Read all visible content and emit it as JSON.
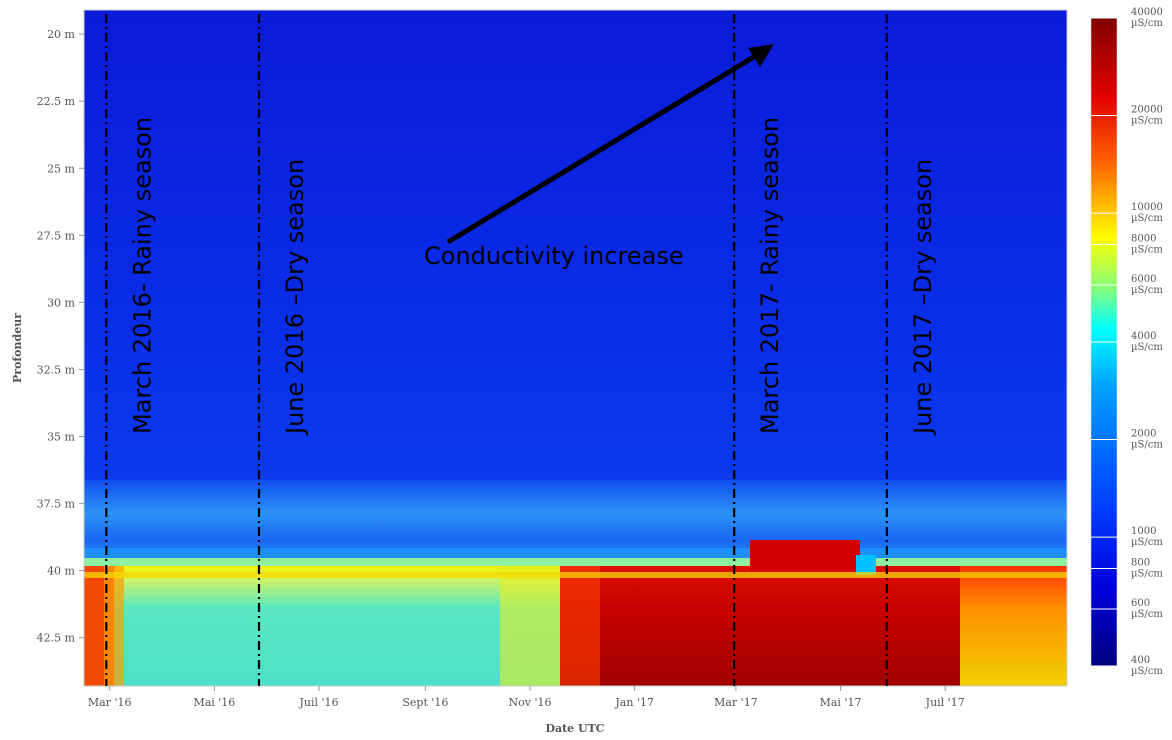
{
  "chart_data": {
    "type": "heatmap",
    "xlabel": "Date UTC",
    "ylabel": "Profondeur",
    "x_ticks": [
      "Mar '16",
      "Mai '16",
      "Juil '16",
      "Sept '16",
      "Nov '16",
      "Jan '17",
      "Mar '17",
      "Mai '17",
      "Juil '17"
    ],
    "y_ticks": [
      "20 m",
      "22.5 m",
      "25 m",
      "27.5 m",
      "30 m",
      "32.5 m",
      "35 m",
      "37.5 m",
      "40 m",
      "42.5 m"
    ],
    "y_values_m": [
      20,
      22.5,
      25,
      27.5,
      30,
      32.5,
      35,
      37.5,
      40,
      42.5
    ],
    "ylim_m": [
      19.1,
      44.3
    ],
    "x_range": [
      "2016-02-15",
      "2017-09-10"
    ],
    "colorbar": {
      "unit": "µS/cm",
      "scale": "log",
      "ticks": [
        40000,
        20000,
        10000,
        8000,
        6000,
        4000,
        2000,
        1000,
        800,
        600,
        400
      ],
      "colors": [
        "#000080",
        "#0000ff",
        "#0080ff",
        "#00ffff",
        "#80ff80",
        "#ffff00",
        "#ff8000",
        "#ff0000",
        "#800000"
      ]
    },
    "regions": [
      {
        "depth_m": [
          19.1,
          38.0
        ],
        "period": [
          "2016-02-15",
          "2017-09-10"
        ],
        "approx_conductivity_uS_cm": 1200
      },
      {
        "depth_m": [
          37.0,
          39.3
        ],
        "period": [
          "2016-02-15",
          "2016-11-01"
        ],
        "approx_conductivity_uS_cm": 2500
      },
      {
        "depth_m": [
          39.8,
          44.3
        ],
        "period": [
          "2016-03-01",
          "2016-11-15"
        ],
        "approx_conductivity_uS_cm": 6000
      },
      {
        "depth_m": [
          39.5,
          44.3
        ],
        "period": [
          "2016-12-10",
          "2017-07-01"
        ],
        "approx_conductivity_uS_cm": 35000
      },
      {
        "depth_m": [
          39.8,
          44.3
        ],
        "period": [
          "2017-07-01",
          "2017-09-10"
        ],
        "approx_conductivity_uS_cm": 12000
      }
    ],
    "vertical_lines": [
      {
        "date": "2016-02-28",
        "label": "March 2016- Rainy season"
      },
      {
        "date": "2016-05-27",
        "label": "June 2016 –Dry season"
      },
      {
        "date": "2017-02-28",
        "label": "March 2017- Rainy season"
      },
      {
        "date": "2017-05-28",
        "label": "June 2017 –Dry season"
      }
    ],
    "annotations": [
      {
        "text": "Conductivity increase",
        "arrow": true
      }
    ],
    "grid": false,
    "legend": "right"
  }
}
